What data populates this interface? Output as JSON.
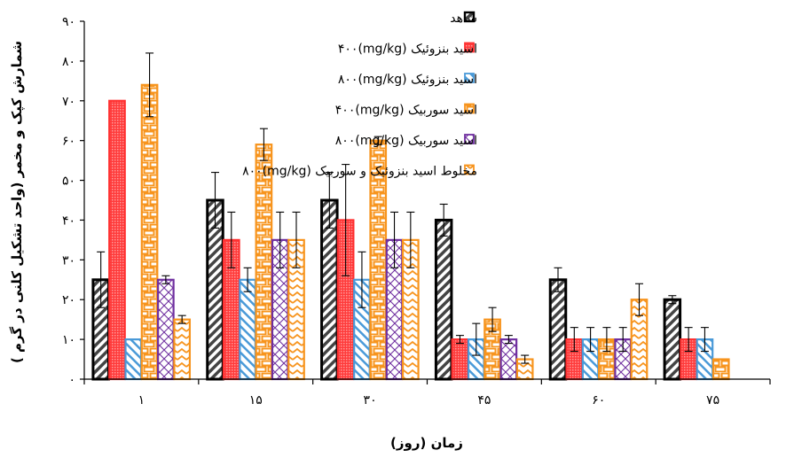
{
  "chart_data": {
    "type": "bar",
    "xlabel": "زمان (روز)",
    "ylabel": "شمارش کپک و مخمر (واحد تشکیل کلنی در گرم )",
    "ylim": [
      0,
      90
    ],
    "y_ticks": [
      "۰",
      "۱۰",
      "۲۰",
      "۳۰",
      "۴۰",
      "۵۰",
      "۶۰",
      "۷۰",
      "۸۰",
      "۹۰"
    ],
    "categories": [
      "۱",
      "۱۵",
      "۳۰",
      "۴۵",
      "۶۰",
      "۷۵"
    ],
    "legend_position": "top-right",
    "series": [
      {
        "name": "شاهد",
        "color": "#111111",
        "pattern": "diagonal-hatch",
        "values": [
          25,
          45,
          45,
          40,
          25,
          20
        ],
        "errors": [
          7,
          7,
          7,
          4,
          3,
          1
        ]
      },
      {
        "name": "اسید بنزوئیک (mg/kg)۴۰۰",
        "color": "#ff3030",
        "pattern": "dotted-fill",
        "values": [
          70,
          35,
          40,
          10,
          10,
          10
        ],
        "errors": [
          0,
          7,
          14,
          1,
          3,
          3
        ]
      },
      {
        "name": "اسید بنزوئیک (mg/kg)۸۰۰",
        "color": "#4a9ad8",
        "pattern": "diagonal-lines",
        "values": [
          10,
          25,
          25,
          10,
          10,
          10
        ],
        "errors": [
          0,
          3,
          7,
          4,
          3,
          3
        ]
      },
      {
        "name": "اسید سوربیک (mg/kg)۴۰۰",
        "color": "#f7941d",
        "pattern": "bricks",
        "values": [
          74,
          59,
          60,
          15,
          10,
          5
        ],
        "errors": [
          8,
          4,
          1,
          3,
          3,
          0
        ]
      },
      {
        "name": "اسید سوربیک (mg/kg)۸۰۰",
        "color": "#7030a0",
        "pattern": "cross-hatch",
        "values": [
          25,
          35,
          35,
          10,
          10,
          0
        ],
        "errors": [
          1,
          7,
          7,
          1,
          3,
          0
        ]
      },
      {
        "name": "مخلوط اسید بنزوئیک و سوربیک (mg/kg)۸۰۰",
        "color": "#f7941d",
        "pattern": "zigzag",
        "values": [
          15,
          35,
          35,
          5,
          20,
          0
        ],
        "errors": [
          1,
          7,
          7,
          1,
          4,
          0
        ]
      }
    ]
  }
}
